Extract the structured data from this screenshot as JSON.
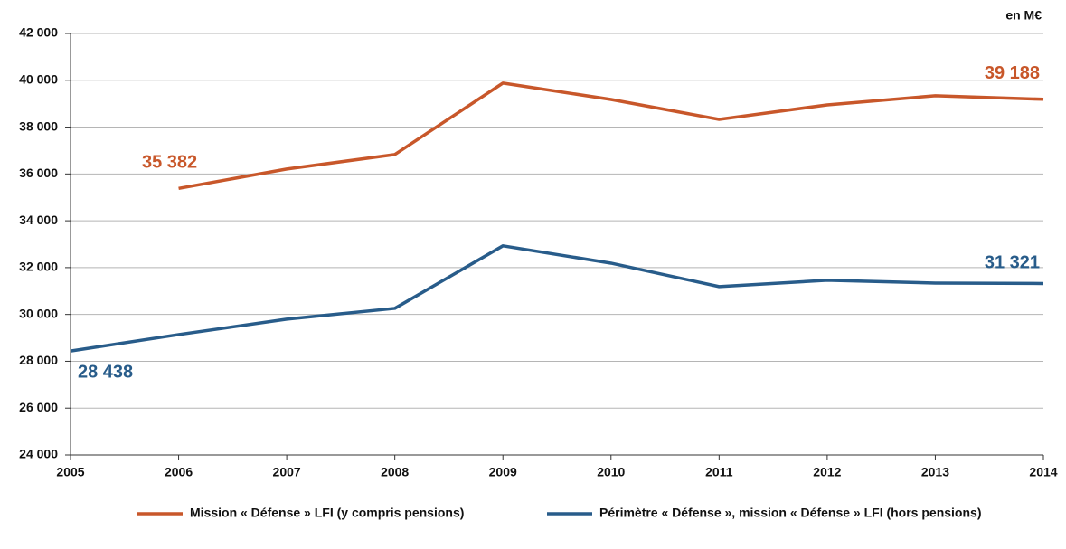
{
  "chart_data": {
    "type": "line",
    "annotation": "en M€",
    "x": [
      2005,
      2006,
      2007,
      2008,
      2009,
      2010,
      2011,
      2012,
      2013,
      2014
    ],
    "xlim": [
      2005,
      2014
    ],
    "xticks": [
      2005,
      2006,
      2007,
      2008,
      2009,
      2010,
      2011,
      2012,
      2013,
      2014
    ],
    "ylim": [
      24000,
      42000
    ],
    "yticks": [
      {
        "value": 24000,
        "label": "24 000"
      },
      {
        "value": 26000,
        "label": "26 000"
      },
      {
        "value": 28000,
        "label": "28 000"
      },
      {
        "value": 30000,
        "label": "30 000"
      },
      {
        "value": 32000,
        "label": "32 000"
      },
      {
        "value": 34000,
        "label": "34 000"
      },
      {
        "value": 36000,
        "label": "36 000"
      },
      {
        "value": 38000,
        "label": "38 000"
      },
      {
        "value": 40000,
        "label": "40 000"
      },
      {
        "value": 42000,
        "label": "42 000"
      }
    ],
    "grid": true,
    "legend": "bottom",
    "series": [
      {
        "name": "Mission « Défense » LFI (y compris pensions)",
        "color": "#c8572a",
        "values": [
          null,
          35382,
          36210,
          36830,
          39880,
          39180,
          38330,
          38950,
          39340,
          39188
        ],
        "value_labels": [
          null,
          "35 382",
          null,
          null,
          null,
          null,
          null,
          null,
          null,
          "39 188"
        ]
      },
      {
        "name": "Périmètre « Défense », mission « Défense » LFI (hors pensions)",
        "color": "#285c8a",
        "values": [
          28438,
          29140,
          29800,
          30260,
          32930,
          32190,
          31190,
          31460,
          31340,
          31321
        ],
        "value_labels": [
          "28 438",
          null,
          null,
          null,
          null,
          null,
          null,
          null,
          null,
          "31 321"
        ]
      }
    ]
  }
}
